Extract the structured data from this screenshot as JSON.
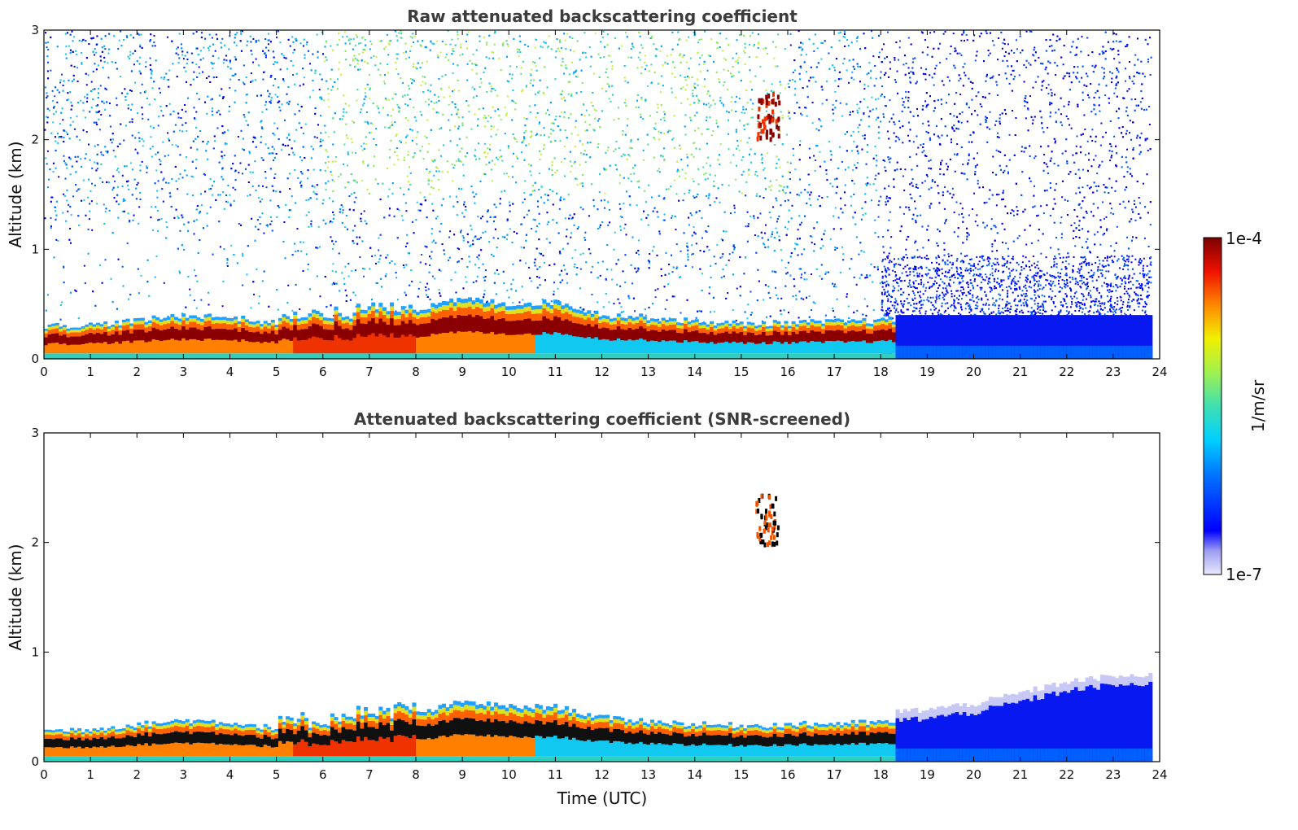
{
  "chart_data": [
    {
      "type": "heatmap",
      "title": "Raw attenuated backscattering coefficient",
      "xlabel": "",
      "ylabel": "Altitude (km)",
      "xlim": [
        0,
        24
      ],
      "ylim": [
        0,
        3
      ],
      "xticks": [
        "0",
        "1",
        "2",
        "3",
        "4",
        "5",
        "6",
        "7",
        "8",
        "9",
        "10",
        "11",
        "12",
        "13",
        "14",
        "15",
        "16",
        "17",
        "18",
        "19",
        "20",
        "21",
        "22",
        "23",
        "24"
      ],
      "yticks": [
        "0",
        "1",
        "2",
        "3"
      ],
      "layer_top_km": [
        0.3,
        0.31,
        0.35,
        0.4,
        0.38,
        0.32,
        0.35,
        0.4,
        0.45,
        0.55,
        0.5,
        0.52,
        0.4,
        0.38,
        0.34,
        0.32,
        0.33,
        0.34,
        0.35,
        0.38,
        0.3,
        0.35,
        0.42,
        0.3,
        0.25
      ],
      "layer_hours": [
        0,
        1,
        2,
        3,
        4,
        5,
        6,
        7,
        8,
        9,
        10,
        11,
        12,
        13,
        14,
        15,
        16,
        17,
        18,
        19,
        20,
        21,
        22,
        23,
        24
      ],
      "cloud": {
        "time_h": [
          15.3,
          15.8
        ],
        "alt_km": [
          2.0,
          2.45
        ]
      },
      "noise": "high",
      "grid": false
    },
    {
      "type": "heatmap",
      "title": "Attenuated backscattering coefficient (SNR-screened)",
      "xlabel": "Time (UTC)",
      "ylabel": "Altitude (km)",
      "xlim": [
        0,
        24
      ],
      "ylim": [
        0,
        3
      ],
      "xticks": [
        "0",
        "1",
        "2",
        "3",
        "4",
        "5",
        "6",
        "7",
        "8",
        "9",
        "10",
        "11",
        "12",
        "13",
        "14",
        "15",
        "16",
        "17",
        "18",
        "19",
        "20",
        "21",
        "22",
        "23",
        "24"
      ],
      "yticks": [
        "0",
        "1",
        "2",
        "3"
      ],
      "layer_top_km": [
        0.28,
        0.3,
        0.34,
        0.38,
        0.36,
        0.3,
        0.32,
        0.4,
        0.44,
        0.55,
        0.5,
        0.5,
        0.4,
        0.37,
        0.34,
        0.33,
        0.34,
        0.35,
        0.36,
        0.4,
        0.45,
        0.55,
        0.65,
        0.7,
        0.7
      ],
      "layer_hours": [
        0,
        1,
        2,
        3,
        4,
        5,
        6,
        7,
        8,
        9,
        10,
        11,
        12,
        13,
        14,
        15,
        16,
        17,
        18,
        19,
        20,
        21,
        22,
        23,
        24
      ],
      "cloud": {
        "time_h": [
          15.3,
          15.8
        ],
        "alt_km": [
          2.0,
          2.45
        ]
      },
      "noise": "screened",
      "grid": false
    }
  ],
  "colorbar": {
    "max_label": "1e-4",
    "min_label": "1e-7",
    "unit_label": "1/m/sr",
    "colormap": "jet"
  }
}
